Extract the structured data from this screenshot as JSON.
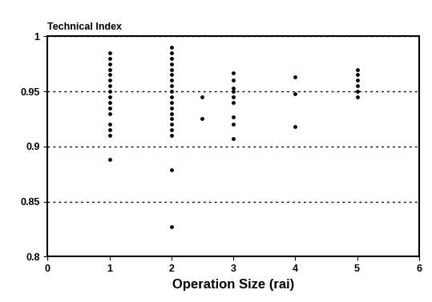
{
  "chart_data": {
    "type": "scatter",
    "y_label": "Technical Index",
    "x_label": "Operation Size (rai)",
    "x": [
      1,
      1,
      1,
      1,
      1,
      1,
      1,
      1,
      1,
      1,
      1,
      1,
      1,
      1,
      1,
      1,
      2,
      2,
      2,
      2,
      2,
      2,
      2,
      2,
      2,
      2,
      2,
      2,
      2,
      2,
      2,
      2,
      2,
      2,
      2,
      2.5,
      2.5,
      3,
      3,
      3,
      3,
      3,
      3,
      3,
      3,
      3,
      4,
      4,
      4,
      5,
      5,
      5,
      5,
      5,
      5
    ],
    "values": [
      0.985,
      0.98,
      0.975,
      0.97,
      0.965,
      0.96,
      0.955,
      0.95,
      0.945,
      0.94,
      0.935,
      0.93,
      0.92,
      0.915,
      0.91,
      0.888,
      0.99,
      0.985,
      0.98,
      0.975,
      0.97,
      0.965,
      0.96,
      0.955,
      0.95,
      0.945,
      0.94,
      0.935,
      0.93,
      0.925,
      0.92,
      0.915,
      0.91,
      0.879,
      0.827,
      0.945,
      0.925,
      0.967,
      0.96,
      0.953,
      0.95,
      0.945,
      0.94,
      0.927,
      0.92,
      0.907,
      0.963,
      0.948,
      0.918,
      0.97,
      0.965,
      0.96,
      0.955,
      0.95,
      0.945
    ],
    "color": "#000000",
    "marker": "o",
    "xlim": [
      0,
      6
    ],
    "xticks": [
      0,
      1,
      2,
      3,
      4,
      5,
      6
    ],
    "ylim": [
      0.8,
      1
    ],
    "yticks": [
      0.8,
      0.85,
      0.9,
      0.95,
      1
    ],
    "grid": true
  }
}
